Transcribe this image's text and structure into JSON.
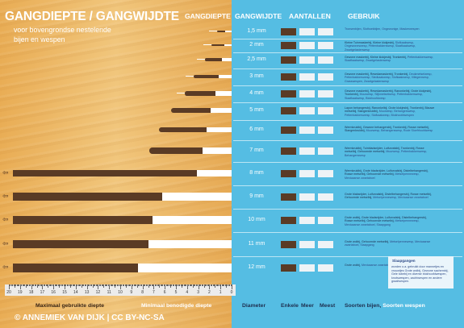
{
  "title": "GANGDIEPTE / GANGWIJDTE",
  "subtitle": [
    "voor bovengrondse nestelende",
    "bijen en wespen"
  ],
  "headers": {
    "gangdiepte": "GANGDIEPTE",
    "gangwijdte": "GANGWIJDTE",
    "aantallen": "AANTALLEN",
    "gebruik": "GEBRUIK"
  },
  "footer": {
    "max_depth": "Maximaal gebruikte diepte",
    "min_depth": "Minimaal benodigde diepte",
    "diameter": "Diameter",
    "enkele": "Enkele",
    "meer": "Meer",
    "meest": "Meest",
    "species": "Soorten bijen, ",
    "species_wasps": "Soorten wespen",
    "credit": "© ANNEMIEK VAN DIJK | CC BY-NC-SA"
  },
  "ruler_labels": [
    "20",
    "19",
    "18",
    "17",
    "16",
    "15",
    "14",
    "13",
    "12",
    "11",
    "10",
    "9",
    "8",
    "7",
    "6",
    "5",
    "4",
    "3",
    "2",
    "1",
    "0"
  ],
  "legend": {
    "title": "Slaapgangen",
    "text": "worden o.a. gebruikt door mannetjes en vrouwtjes Grote wolbij, Gewone sachembij, Gele tubebij en diverse blokhoofdwespen, knotswespen, zachtwespen en andere graafwespen."
  },
  "rows": [
    {
      "mm": "1,5 mm",
      "depth_cm": 1.3,
      "min_cm": 0,
      "counts": [
        1,
        0,
        0
      ],
      "uses": [
        {
          "t": "Tronsenbijen, Slothoekbijen, Ongewonige, Maskerwespen",
          "bee": false
        }
      ]
    },
    {
      "mm": "2 mm",
      "depth_cm": 1.8,
      "min_cm": 0,
      "counts": [
        1,
        0,
        0
      ],
      "uses": [
        {
          "t": "Kleine Tuinmaskerbij, Kleine klokjesbij, ",
          "bee": true
        },
        {
          "t": "Slofkaakwesp, Ongewoneswesp, Pettenbakkerswesp, Slaafkaakwesp, Zwartgelastenwesp",
          "bee": false
        }
      ]
    },
    {
      "mm": "2,5 mm",
      "depth_cm": 2.4,
      "min_cm": 0,
      "counts": [
        1,
        0,
        0
      ],
      "uses": [
        {
          "t": "Gewone maskerbij, Kleine klokjesbij, Tronkenbij, ",
          "bee": true
        },
        {
          "t": "Pettenbakkerswesp, Slaafkaakwesp, Zwartgelastenwesp",
          "bee": false
        }
      ]
    },
    {
      "mm": "3 mm",
      "depth_cm": 3.4,
      "min_cm": 0,
      "counts": [
        1,
        0,
        0
      ],
      "uses": [
        {
          "t": "Gewone maskerbij, Resedamaskerbij, Tronkenbij, ",
          "bee": true
        },
        {
          "t": "Deukmetselwesp, Pettenbakkerswesp, Sledkaakwesp, Slofkaakwesp, Villegenwesp, Grasswespen, Zwartgelastenwesp",
          "bee": false
        }
      ]
    },
    {
      "mm": "4 mm",
      "depth_cm": 4.2,
      "min_cm": 0,
      "counts": [
        1,
        0,
        0
      ],
      "uses": [
        {
          "t": "Gewone maskerbij, Resedamaskerbij, Ranonkelbij, Grote klokjesbij, Tronkenbij, ",
          "bee": true
        },
        {
          "t": "Muurwesp, Slijkmetselwesp, Pettenbakkerswesp, Slaafkaakwesp, Blokhoofdwesp",
          "bee": false
        }
      ]
    },
    {
      "mm": "5 mm",
      "depth_cm": 5.4,
      "min_cm": 0,
      "counts": [
        1,
        0,
        0
      ],
      "uses": [
        {
          "t": "Lapon behangersbij, Ranonkelbij, Grote klokjesbij, Tronkenbij, Blauwe metselbij, Slangenkruidbij, ",
          "bee": true
        },
        {
          "t": "Muurwesp, Behangerswesp, Pettenbakkerswesp, Slofkaakwesp, Blokhoofdwespen",
          "bee": false
        }
      ]
    },
    {
      "mm": "6 mm",
      "depth_cm": 6.5,
      "min_cm": 0,
      "counts": [
        1,
        0,
        0
      ],
      "uses": [
        {
          "t": "Wermkruidbij, Gewone behangersbij, Tronkenbij, Rosse metselbij, Slangenkruidbij, ",
          "bee": true
        },
        {
          "t": "Muurwesp, Behangerswesp, Rode Sloefrhoofdwesp",
          "bee": false
        }
      ]
    },
    {
      "mm": "7 mm",
      "depth_cm": 7.4,
      "min_cm": 0,
      "counts": [
        1,
        0,
        0
      ],
      "uses": [
        {
          "t": "Wermkruidbij, Tuinbladsnijder, Luifurvalsbij, Tronkenbij, Rosse metselbij, Gehoornde metselbij, ",
          "bee": true
        },
        {
          "t": "Muurwesp, Pettenbakkerswesp, Behangerswesp",
          "bee": false
        }
      ]
    },
    {
      "mm": "8 mm",
      "depth_cm": 8.0,
      "min_cm": 3.1,
      "counts": [
        1,
        0,
        0
      ],
      "uses": [
        {
          "t": "Wermkruidbij, Grote bladsnijder, Luifurvalsbij, Distelbehangersbij, Rosse metselbij, Gehoornde metselbij, ",
          "bee": true
        },
        {
          "t": "Metselpennewesp, Mexicaanse zwartaboel",
          "bee": false
        }
      ]
    },
    {
      "mm": "9 mm",
      "depth_cm": 8.0,
      "min_cm": 6.2,
      "counts": [
        1,
        0,
        0
      ],
      "uses": [
        {
          "t": "Grote blaksnijder, Luifurvalsbij, Distelbehangersbij, Rosse metselbij, Gehoornde metselbij, ",
          "bee": true
        },
        {
          "t": "Metselpennewesp, Mexicaanse zwartaboel",
          "bee": false
        }
      ]
    },
    {
      "mm": "10 mm",
      "depth_cm": 8.0,
      "min_cm": 7.1,
      "counts": [
        1,
        0,
        0
      ],
      "uses": [
        {
          "t": "Grote wolbij, Grote bladsnijder, Luifurvalsbij, Distelbehangersbij, Rosse metselbij, Gehoornde metselbij, ",
          "bee": true
        },
        {
          "t": "Metselpennewesp, Mexicaanse zwartaboel, Slaapgang",
          "bee": false
        }
      ]
    },
    {
      "mm": "11 mm",
      "depth_cm": 8.0,
      "min_cm": 7.5,
      "counts": [
        1,
        0,
        0
      ],
      "uses": [
        {
          "t": "Grote wolbij, Gehoornde metselbij, ",
          "bee": true
        },
        {
          "t": "Metselpennewesp, Mexicaanse zwartaboel, Slaapgang",
          "bee": false
        }
      ]
    },
    {
      "mm": "12 mm",
      "depth_cm": 8.0,
      "min_cm": 8.4,
      "counts": [
        1,
        0,
        0
      ],
      "uses": [
        {
          "t": "Grote wolbij, ",
          "bee": true
        },
        {
          "t": "Mexicaanse zwartaboel, Slaapgang",
          "bee": false
        }
      ]
    }
  ]
}
